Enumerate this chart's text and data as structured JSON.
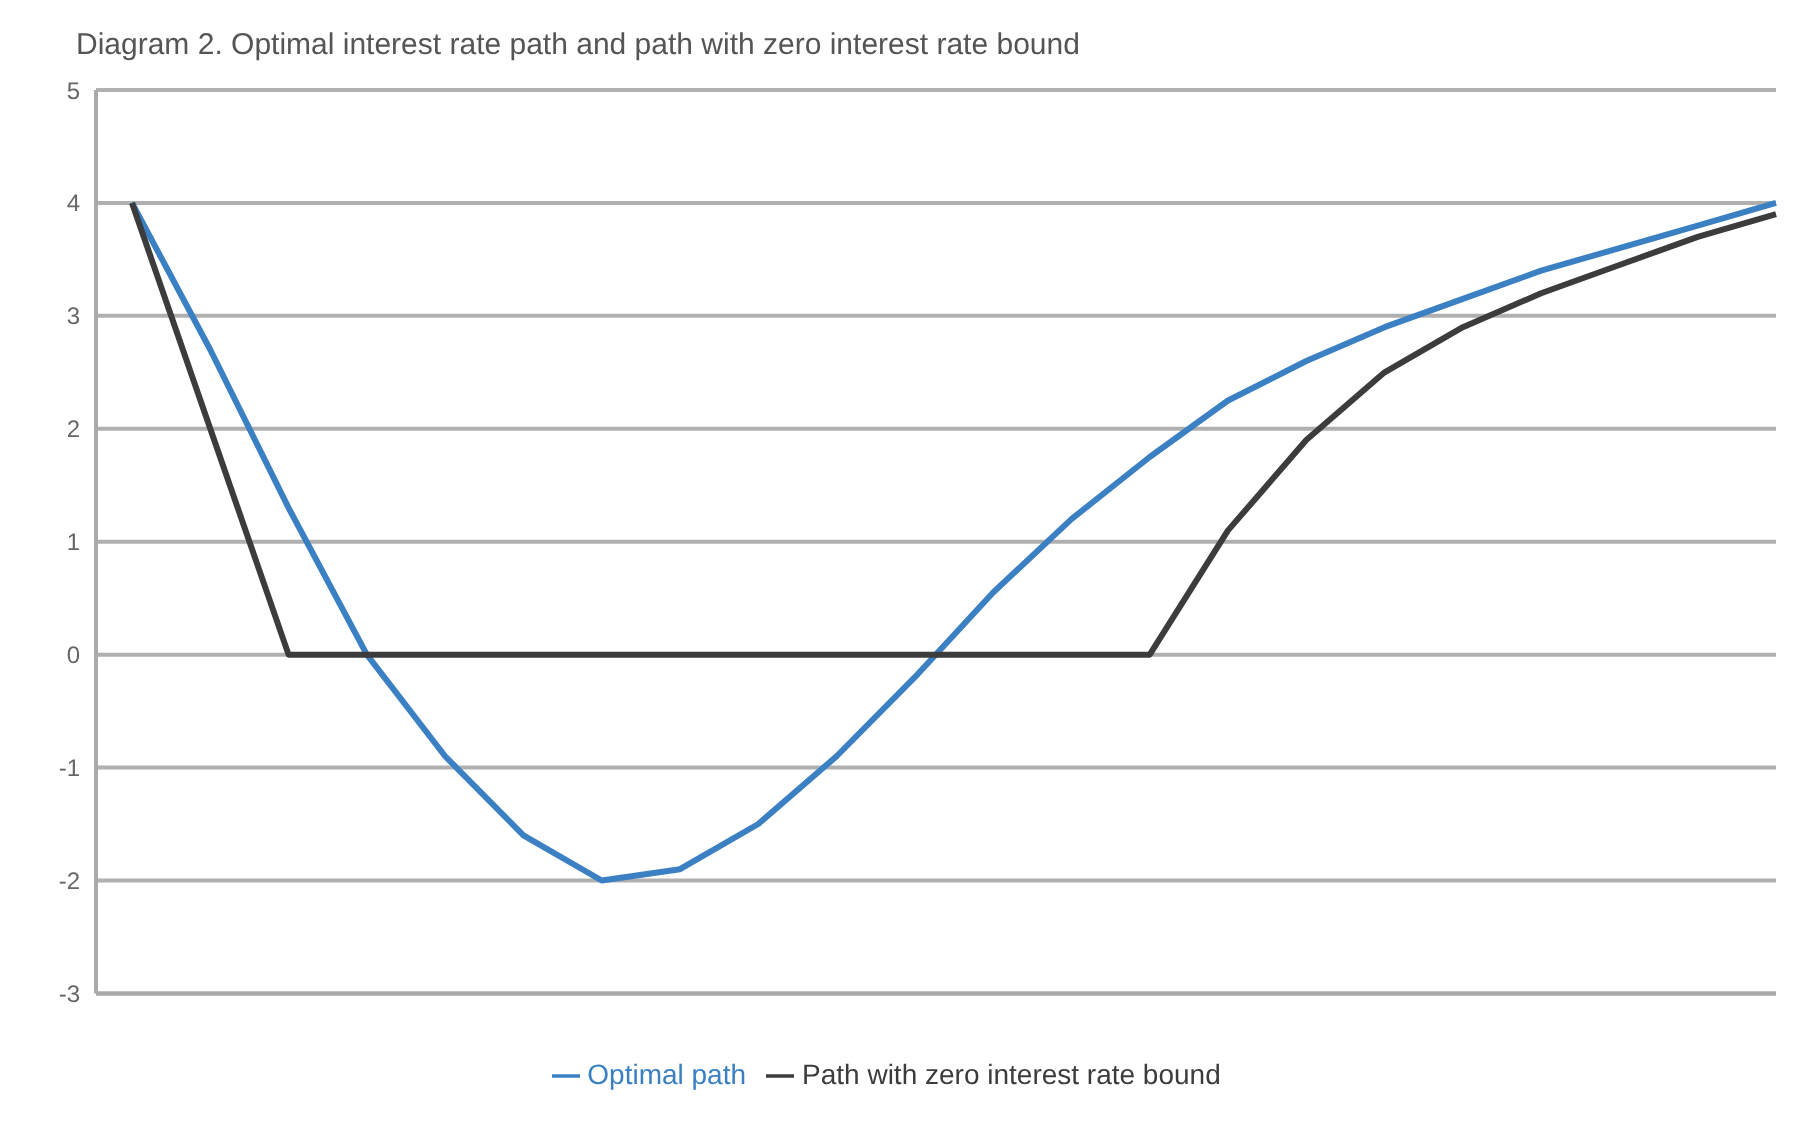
{
  "chart_data": {
    "type": "line",
    "title": "Diagram 2. Optimal interest rate path and path with zero interest rate bound",
    "categories": [
      null,
      null,
      null,
      null,
      null,
      null,
      null,
      null,
      null,
      null,
      null,
      null,
      null,
      null,
      null,
      null,
      null,
      null,
      null,
      null,
      null,
      null
    ],
    "series": [
      {
        "name": "Optimal path",
        "color": "#3a80c3",
        "values": [
          4,
          2.7,
          1.3,
          0,
          -0.9,
          -1.6,
          -2.0,
          -1.9,
          -1.5,
          -0.9,
          -0.2,
          0.55,
          1.2,
          1.75,
          2.25,
          2.6,
          2.9,
          3.15,
          3.4,
          3.6,
          3.8,
          4.0
        ]
      },
      {
        "name": "Path with zero interest rate bound",
        "color": "#3c3c3c",
        "values": [
          4,
          2,
          0,
          0,
          0,
          0,
          0,
          0,
          0,
          0,
          0,
          0,
          0,
          0,
          1.1,
          1.9,
          2.5,
          2.9,
          3.2,
          3.45,
          3.7,
          3.9
        ]
      }
    ],
    "ylim": [
      -3,
      5
    ],
    "yticks": [
      -3,
      -2,
      -1,
      0,
      1,
      2,
      3,
      4,
      5
    ],
    "tick_labels": "y",
    "grid": "y",
    "legend": "bottom",
    "marker": "none",
    "line_style": "solid"
  }
}
